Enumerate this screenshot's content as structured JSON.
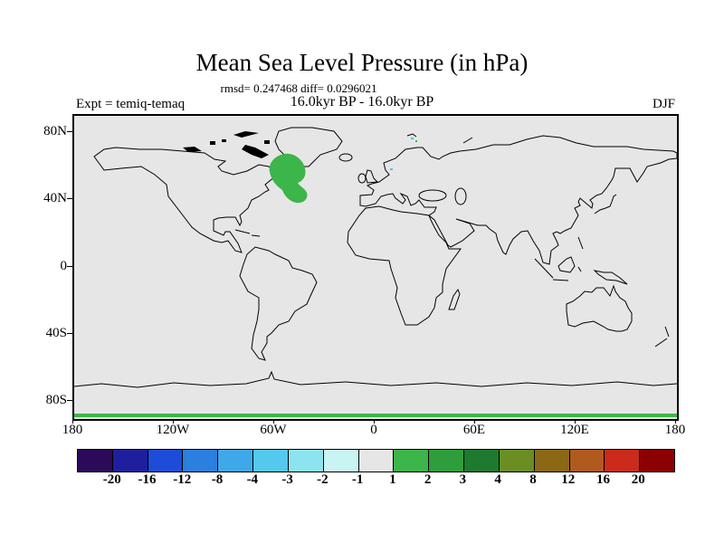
{
  "title": "Mean Sea Level Pressure (in hPa)",
  "stats_line": "rmsd= 0.247468 diff= 0.0296021",
  "period_line": "16.0kyr BP - 16.0kyr BP",
  "expt_label": "Expt = temiq-temaq",
  "season_label": "DJF",
  "map": {
    "background_color": "#e6e6e6",
    "coastline_color": "#000000",
    "positive_anomaly_color": "#3cb54a",
    "negative_speck_color": "#40c8e8",
    "lat_ticks": [
      {
        "label": "80N",
        "lat": 80
      },
      {
        "label": "40N",
        "lat": 40
      },
      {
        "label": "0",
        "lat": 0
      },
      {
        "label": "40S",
        "lat": -40
      },
      {
        "label": "80S",
        "lat": -80
      }
    ],
    "lon_ticks": [
      {
        "label": "180",
        "lon": -180
      },
      {
        "label": "120W",
        "lon": -120
      },
      {
        "label": "60W",
        "lon": -60
      },
      {
        "label": "0",
        "lon": 0
      },
      {
        "label": "60E",
        "lon": 60
      },
      {
        "label": "120E",
        "lon": 120
      },
      {
        "label": "180",
        "lon": 180
      }
    ]
  },
  "colorbar": {
    "labels": [
      "-20",
      "-16",
      "-12",
      "-8",
      "-4",
      "-3",
      "-2",
      "-1",
      "1",
      "2",
      "3",
      "4",
      "8",
      "12",
      "16",
      "20"
    ],
    "colors": [
      "#2b0a57",
      "#1f1f9e",
      "#1c4cd8",
      "#2a7fdf",
      "#3fa8e8",
      "#55c8ee",
      "#8ce4f0",
      "#c8f4f4",
      "#e6e6e6",
      "#3cb54a",
      "#2e9e3c",
      "#1e7a2e",
      "#6b8e23",
      "#8b6914",
      "#b05a1e",
      "#cc2a1a",
      "#8b0000"
    ]
  },
  "chart_data": {
    "type": "heatmap",
    "title": "Mean Sea Level Pressure (in hPa)",
    "subtitle": "16.0kyr BP - 16.0kyr BP",
    "stats": {
      "rmsd": 0.247468,
      "diff": 0.0296021
    },
    "experiment": "temiq-temaq",
    "season": "DJF",
    "units": "hPa",
    "projection": "equirectangular world map with coastlines",
    "lon_range": [
      -180,
      180
    ],
    "lat_range": [
      -90,
      90
    ],
    "contour_levels": [
      -20,
      -16,
      -12,
      -8,
      -4,
      -3,
      -2,
      -1,
      1,
      2,
      3,
      4,
      8,
      12,
      16,
      20
    ],
    "legend_position": "horizontal colorbar below map",
    "grid": false,
    "anomalies": [
      {
        "region": "Labrador Sea / eastern Canada blob",
        "lon_range": [
          -64,
          -39
        ],
        "lat_range": [
          41,
          67
        ],
        "value_range": [
          1,
          2
        ],
        "color": "#3cb54a"
      },
      {
        "region": "strip along southern (Antarctic) map edge",
        "lon_range": [
          -180,
          180
        ],
        "lat_range": [
          -90,
          -87
        ],
        "value_range": [
          1,
          2
        ],
        "color": "#3cb54a"
      },
      {
        "region": "tiny specks near Norwegian Sea / Svalbard",
        "value_range": [
          -2,
          -1
        ],
        "color": "#40c8e8"
      }
    ]
  }
}
